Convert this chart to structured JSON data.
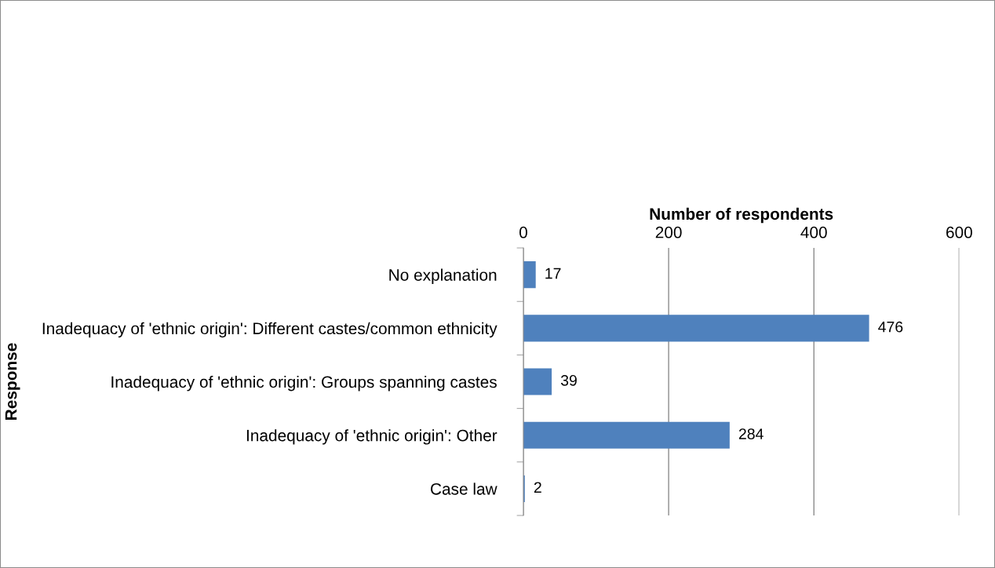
{
  "chart_data": {
    "type": "bar",
    "orientation": "horizontal",
    "xlabel": "Number of respondents",
    "ylabel": "Response",
    "categories": [
      "No explanation",
      "Inadequacy of 'ethnic origin': Different castes/common ethnicity",
      "Inadequacy of 'ethnic origin': Groups spanning castes",
      "Inadequacy of 'ethnic origin': Other",
      "Case law"
    ],
    "values": [
      17,
      476,
      39,
      284,
      2
    ],
    "color": "#4f81bd",
    "xlim": [
      0,
      600
    ],
    "xticks": [
      0,
      200,
      400,
      600
    ],
    "grid": "x",
    "data_labels": true
  }
}
